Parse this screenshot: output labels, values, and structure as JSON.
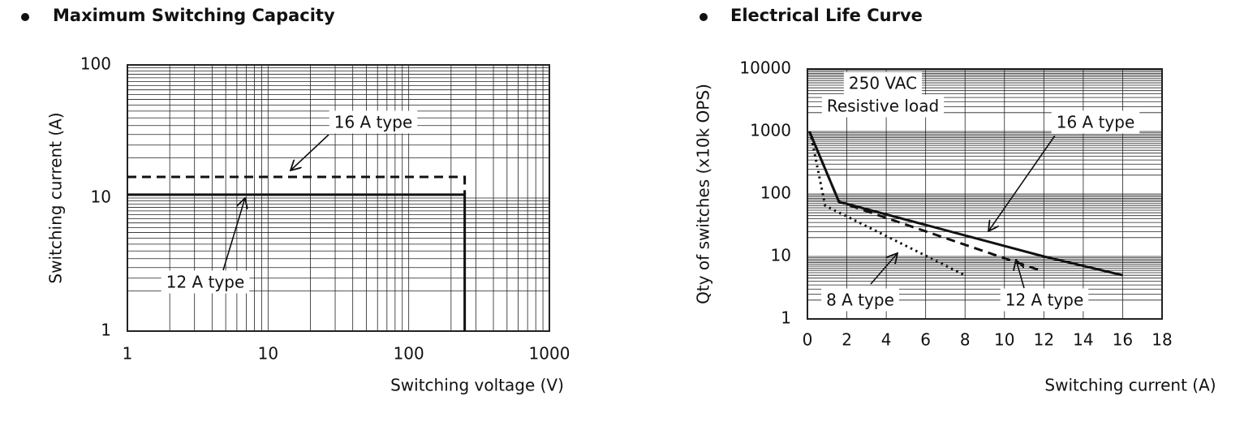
{
  "chart_data": [
    {
      "type": "line",
      "title": "Maximum Switching Capacity",
      "x_label": "Switching voltage (V)",
      "y_label": "Switching current (A)",
      "log_x": true,
      "log_y": true,
      "grid": true,
      "xlim": [
        1,
        1000
      ],
      "ylim": [
        1,
        100
      ],
      "xticks": [
        1,
        10,
        100,
        1000
      ],
      "yticks": [
        1,
        10,
        100
      ],
      "series": [
        {
          "name": "16 A type",
          "color": "#111111",
          "line_style": "dashed",
          "x": [
            1,
            250,
            250
          ],
          "values": [
            14.4,
            14.4,
            10.6
          ]
        },
        {
          "name": "12 A type",
          "color": "#111111",
          "line_style": "solid",
          "x": [
            1,
            250,
            250
          ],
          "values": [
            10.6,
            10.6,
            1
          ]
        }
      ]
    },
    {
      "type": "line",
      "title": "Electrical Life Curve",
      "x_label": "Switching current (A)",
      "y_label": "Qty of switches  (x10k OPS)",
      "annotations": [
        "250 VAC",
        "Resistive load"
      ],
      "log_x": false,
      "log_y": true,
      "grid": true,
      "xlim": [
        0,
        18
      ],
      "ylim": [
        1,
        10000
      ],
      "xticks": [
        0,
        2,
        4,
        6,
        8,
        10,
        12,
        14,
        16,
        18
      ],
      "yticks": [
        1,
        10,
        100,
        1000,
        10000
      ],
      "series": [
        {
          "name": "16 A type",
          "color": "#111111",
          "line_style": "solid",
          "x": [
            0.1,
            1.6,
            12,
            16
          ],
          "values": [
            1000,
            75,
            10,
            5
          ]
        },
        {
          "name": "12 A type",
          "color": "#111111",
          "line_style": "dashed",
          "x": [
            0.1,
            1.6,
            11.8
          ],
          "values": [
            1000,
            75,
            6
          ]
        },
        {
          "name": "8 A type",
          "color": "#111111",
          "line_style": "dotted",
          "x": [
            0.2,
            0.9,
            8
          ],
          "values": [
            800,
            65,
            5
          ]
        }
      ]
    }
  ]
}
